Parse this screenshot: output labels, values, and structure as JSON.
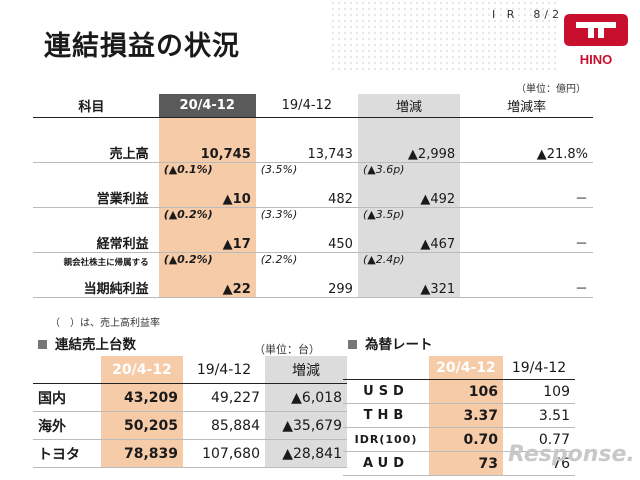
{
  "header": {
    "title": "連結損益の状況",
    "page_label": "I R　8/22",
    "logo_text": "HINO",
    "unit_note": "（単位：億円）"
  },
  "main_table": {
    "headers": [
      "科目",
      "20/4-12",
      "19/4-12",
      "増減",
      "増減率"
    ],
    "rows": [
      {
        "label": "売上高",
        "cur": "10,745",
        "cur_pct": "",
        "prev": "13,743",
        "prev_pct": "",
        "diff": "▲2,998",
        "diff_pct": "",
        "rate": "▲21.8%"
      },
      {
        "label": "営業利益",
        "cur": "▲10",
        "cur_pct": "(▲0.1%)",
        "prev": "482",
        "prev_pct": "(3.5%)",
        "diff": "▲492",
        "diff_pct": "(▲3.6p)",
        "rate": "－"
      },
      {
        "label": "経常利益",
        "cur": "▲17",
        "cur_pct": "(▲0.2%)",
        "prev": "450",
        "prev_pct": "(3.3%)",
        "diff": "▲467",
        "diff_pct": "(▲3.5p)",
        "rate": "－"
      },
      {
        "label": "当期純利益",
        "label_prefix": "親会社株主に帰属する",
        "cur": "▲22",
        "cur_pct": "(▲0.2%)",
        "prev": "299",
        "prev_pct": "(2.2%)",
        "diff": "▲321",
        "diff_pct": "(▲2.4p)",
        "rate": "－"
      }
    ],
    "note": "（　）は、売上高利益率"
  },
  "units_table": {
    "title": "連結売上台数",
    "unit": "（単位：台）",
    "headers": [
      "",
      "20/4-12",
      "19/4-12",
      "増減"
    ],
    "rows": [
      {
        "label": "国内",
        "cur": "43,209",
        "prev": "49,227",
        "diff": "▲6,018"
      },
      {
        "label": "海外",
        "cur": "50,205",
        "prev": "85,884",
        "diff": "▲35,679"
      },
      {
        "label": "トヨタ",
        "cur": "78,839",
        "prev": "107,680",
        "diff": "▲28,841"
      }
    ]
  },
  "fx_table": {
    "title": "為替レート",
    "headers": [
      "",
      "20/4-12",
      "19/4-12"
    ],
    "rows": [
      {
        "label": "USD",
        "cur": "106",
        "prev": "109"
      },
      {
        "label": "THB",
        "cur": "3.37",
        "prev": "3.51"
      },
      {
        "label": "IDR(100)",
        "cur": "0.70",
        "prev": "0.77"
      },
      {
        "label": "AUD",
        "cur": "73",
        "prev": "76"
      }
    ]
  },
  "watermark": "Response.",
  "colors": {
    "highlight": "#f6cba8",
    "gray": "#dcdcdc",
    "dark_header": "#5a5a5a",
    "logo_red": "#c8102e"
  }
}
